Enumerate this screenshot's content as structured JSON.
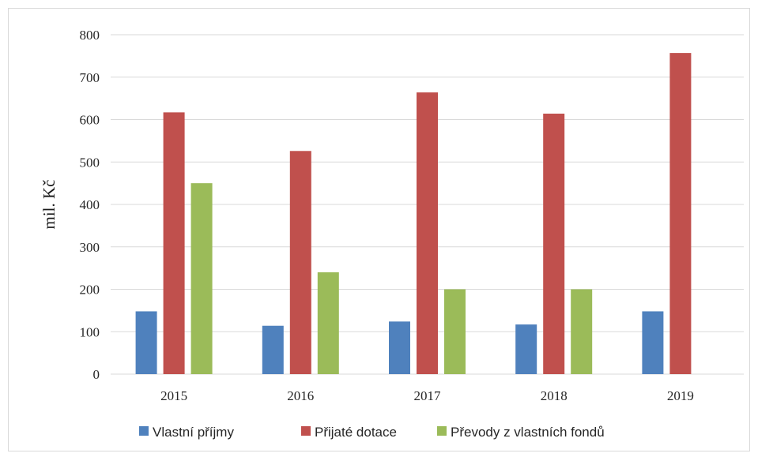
{
  "chart_data": {
    "type": "bar",
    "categories": [
      "2015",
      "2016",
      "2017",
      "2018",
      "2019"
    ],
    "series": [
      {
        "name": "Vlastní příjmy",
        "color": "#4f81bd",
        "values": [
          148,
          114,
          124,
          117,
          148
        ]
      },
      {
        "name": "Přijaté dotace",
        "color": "#c0504d",
        "values": [
          617,
          526,
          664,
          614,
          757
        ]
      },
      {
        "name": "Převody z vlastních fondů",
        "color": "#9bbb59",
        "values": [
          450,
          240,
          200,
          200,
          null
        ]
      }
    ],
    "ylabel": "mil. Kč",
    "xlabel": "",
    "ylim": [
      0,
      800
    ],
    "yticks": [
      "0",
      "100",
      "200",
      "300",
      "400",
      "500",
      "600",
      "700",
      "800"
    ],
    "grid": true,
    "legend_position": "bottom"
  }
}
